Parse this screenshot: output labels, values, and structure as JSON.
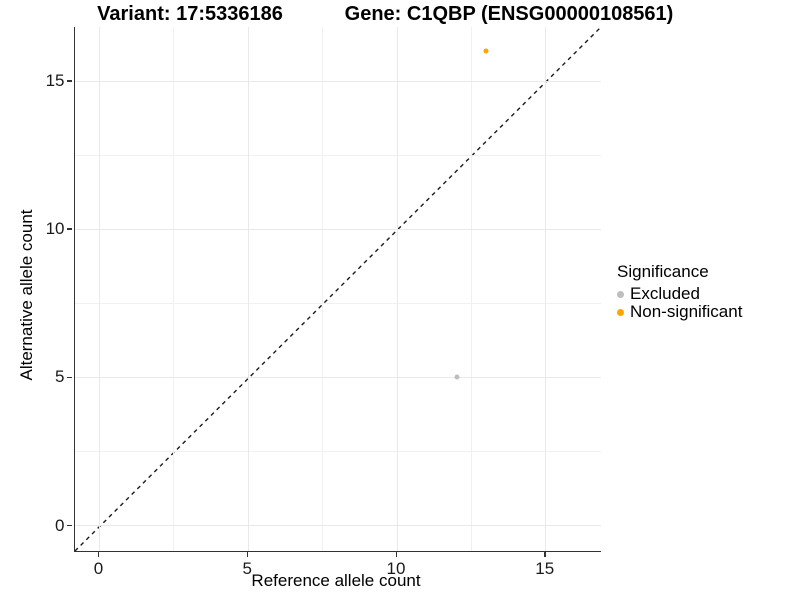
{
  "titles": {
    "variant": "Variant: 17:5336186",
    "gene": "Gene: C1QBP (ENSG00000108561)"
  },
  "chart_data": {
    "type": "scatter",
    "title_left": "Variant: 17:5336186",
    "title_right": "Gene: C1QBP (ENSG00000108561)",
    "xlabel": "Reference allele count",
    "ylabel": "Alternative allele count",
    "xlim": [
      -0.84,
      16.84
    ],
    "ylim": [
      -0.84,
      16.84
    ],
    "x_major_ticks": [
      0,
      5,
      10,
      15
    ],
    "y_major_ticks": [
      0,
      5,
      10,
      15
    ],
    "x_minor_ticks": [
      2.5,
      7.5,
      12.5
    ],
    "y_minor_ticks": [
      2.5,
      7.5,
      12.5
    ],
    "grid": true,
    "reference_line": {
      "type": "identity",
      "style": "dashed",
      "color": "#1a1a1a"
    },
    "series": [
      {
        "name": "Excluded",
        "color": "#bebebe",
        "point_size": 5,
        "points": [
          {
            "x": 12,
            "y": 5
          }
        ]
      },
      {
        "name": "Non-significant",
        "color": "#ffa500",
        "point_size": 5,
        "points": [
          {
            "x": 13,
            "y": 16
          }
        ]
      }
    ],
    "legend": {
      "title": "Significance",
      "position": "right",
      "entries": [
        {
          "label": "Excluded",
          "color": "#bebebe"
        },
        {
          "label": "Non-significant",
          "color": "#ffa500"
        }
      ]
    }
  }
}
